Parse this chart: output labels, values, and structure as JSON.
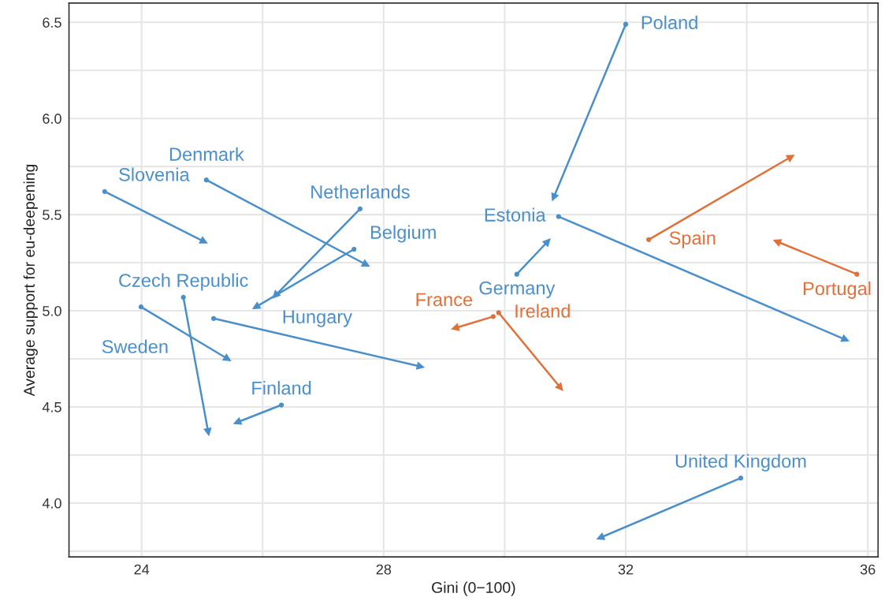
{
  "chart_data": {
    "type": "line",
    "xlabel": "Gini (0−100)",
    "ylabel": "Average support for eu-deepening",
    "xlim": [
      22.8,
      36.17
    ],
    "ylim": [
      3.72,
      6.6
    ],
    "xticks": [
      24,
      {
        "value": 26,
        "label": null
      },
      28,
      {
        "value": 30,
        "label": null
      },
      32,
      {
        "value": 34,
        "label": null
      },
      36
    ],
    "yticks": [
      {
        "value": 3.75,
        "label": null
      },
      {
        "value": 4.0,
        "label": "4.0"
      },
      {
        "value": 4.25,
        "label": null
      },
      4.5,
      {
        "value": 4.75,
        "label": null
      },
      {
        "value": 5.0,
        "label": "5.0"
      },
      {
        "value": 5.25,
        "label": null
      },
      5.5,
      {
        "value": 5.75,
        "label": null
      },
      {
        "value": 6.0,
        "label": "6.0"
      },
      {
        "value": 6.25,
        "label": null
      },
      6.5
    ],
    "grid": true,
    "legend": false,
    "marker": "circle",
    "line_style": "solid",
    "series": [
      {
        "name": "Poland",
        "color": "#4a8fc9",
        "x": [
          32.0,
          30.81
        ],
        "values": [
          6.49,
          5.59
        ]
      },
      {
        "name": "Slovenia",
        "color": "#4a8fc9",
        "x": [
          23.39,
          25.03
        ],
        "values": [
          5.62,
          5.36
        ]
      },
      {
        "name": "Denmark",
        "color": "#4a8fc9",
        "x": [
          25.07,
          27.71
        ],
        "values": [
          5.68,
          5.24
        ]
      },
      {
        "name": "Netherlands",
        "color": "#4a8fc9",
        "x": [
          27.61,
          26.21
        ],
        "values": [
          5.53,
          5.08
        ]
      },
      {
        "name": "Belgium",
        "color": "#4a8fc9",
        "x": [
          27.51,
          25.89
        ],
        "values": [
          5.32,
          5.02
        ]
      },
      {
        "name": "Czech Republic",
        "color": "#4a8fc9",
        "x": [
          24.69,
          25.1
        ],
        "values": [
          5.07,
          4.37
        ]
      },
      {
        "name": "Sweden",
        "color": "#4a8fc9",
        "x": [
          23.99,
          25.42
        ],
        "values": [
          5.02,
          4.75
        ]
      },
      {
        "name": "Hungary",
        "color": "#4a8fc9",
        "x": [
          25.19,
          28.61
        ],
        "values": [
          4.96,
          4.71
        ]
      },
      {
        "name": "Finland",
        "color": "#4a8fc9",
        "x": [
          26.31,
          25.58
        ],
        "values": [
          4.51,
          4.42
        ]
      },
      {
        "name": "Germany",
        "color": "#4a8fc9",
        "x": [
          30.2,
          30.71
        ],
        "values": [
          5.19,
          5.36
        ]
      },
      {
        "name": "Estonia",
        "color": "#4a8fc9",
        "x": [
          30.89,
          35.63
        ],
        "values": [
          5.49,
          4.85
        ]
      },
      {
        "name": "United Kingdom",
        "color": "#4a8fc9",
        "x": [
          33.9,
          31.58
        ],
        "values": [
          4.13,
          3.82
        ]
      },
      {
        "name": "Spain",
        "color": "#e0703a",
        "x": [
          32.38,
          34.73
        ],
        "values": [
          5.37,
          5.8
        ]
      },
      {
        "name": "Portugal",
        "color": "#e0703a",
        "x": [
          35.82,
          34.5
        ],
        "values": [
          5.19,
          5.36
        ]
      },
      {
        "name": "Ireland",
        "color": "#e0703a",
        "x": [
          29.9,
          30.92
        ],
        "values": [
          4.99,
          4.6
        ]
      },
      {
        "name": "France",
        "color": "#e0703a",
        "x": [
          29.81,
          29.18
        ],
        "values": [
          4.97,
          4.91
        ]
      }
    ]
  }
}
